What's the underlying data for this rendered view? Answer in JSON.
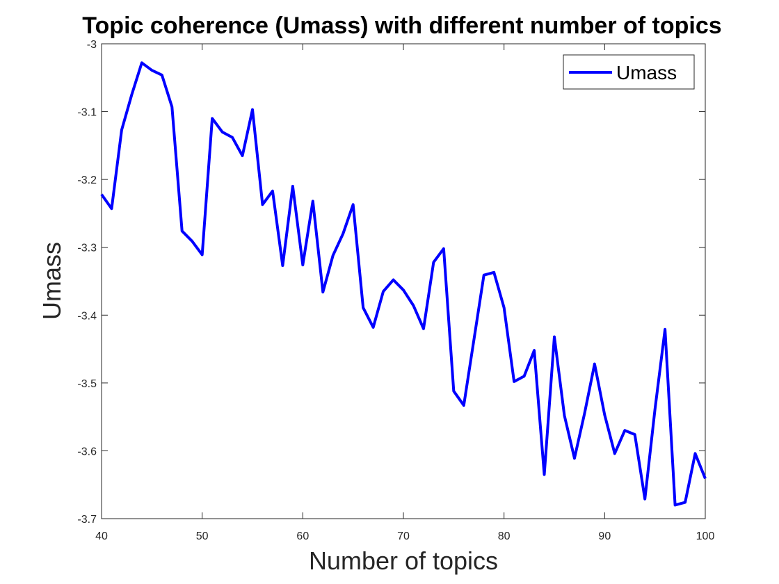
{
  "chart_data": {
    "type": "line",
    "title": "Topic coherence (Umass) with different number of topics",
    "xlabel": "Number of topics",
    "ylabel": "Umass",
    "xlim": [
      40,
      100
    ],
    "ylim": [
      -3.7,
      -3.0
    ],
    "xticks": [
      "40",
      "50",
      "60",
      "70",
      "80",
      "90",
      "100"
    ],
    "yticks": [
      "-3",
      "-3.1",
      "-3.2",
      "-3.3",
      "-3.4",
      "-3.5",
      "-3.6",
      "-3.7"
    ],
    "grid": false,
    "legend": {
      "location": "top-right",
      "entries": [
        "Umass"
      ]
    },
    "series": [
      {
        "name": "Umass",
        "color": "#0000ff",
        "x": [
          40,
          41,
          42,
          43,
          44,
          45,
          46,
          47,
          48,
          49,
          50,
          51,
          52,
          53,
          54,
          55,
          56,
          57,
          58,
          59,
          60,
          61,
          62,
          63,
          64,
          65,
          66,
          67,
          68,
          69,
          70,
          71,
          72,
          73,
          74,
          75,
          76,
          77,
          78,
          79,
          80,
          81,
          82,
          83,
          84,
          85,
          86,
          87,
          88,
          89,
          90,
          91,
          92,
          93,
          94,
          95,
          96,
          97,
          98,
          99,
          100
        ],
        "y": [
          -3.222,
          -3.243,
          -3.127,
          -3.075,
          -3.028,
          -3.039,
          -3.046,
          -3.093,
          -3.276,
          -3.291,
          -3.311,
          -3.11,
          -3.13,
          -3.138,
          -3.165,
          -3.097,
          -3.237,
          -3.217,
          -3.327,
          -3.21,
          -3.326,
          -3.232,
          -3.366,
          -3.312,
          -3.28,
          -3.237,
          -3.389,
          -3.418,
          -3.365,
          -3.348,
          -3.363,
          -3.386,
          -3.42,
          -3.322,
          -3.302,
          -3.512,
          -3.533,
          -3.437,
          -3.341,
          -3.337,
          -3.389,
          -3.498,
          -3.49,
          -3.452,
          -3.635,
          -3.432,
          -3.548,
          -3.611,
          -3.545,
          -3.472,
          -3.547,
          -3.604,
          -3.57,
          -3.576,
          -3.671,
          -3.539,
          -3.421,
          -3.68,
          -3.676,
          -3.604,
          -3.641
        ]
      }
    ]
  }
}
